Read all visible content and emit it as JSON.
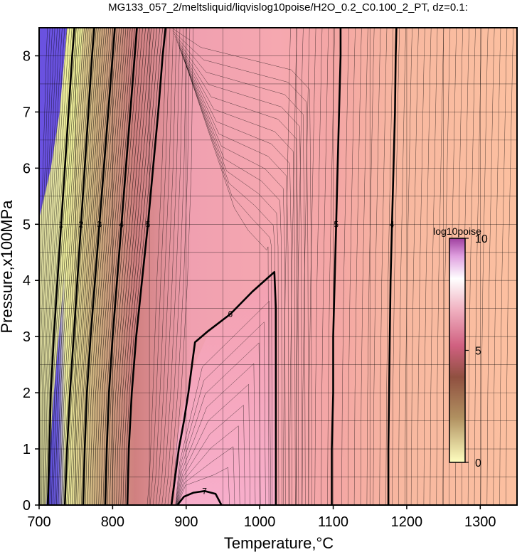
{
  "chart_data": {
    "type": "heatmap",
    "title": "MG133_057_2/meltsliquid/liqvislog10poise/H2O_0.2_C0.100_2_PT, dz=0.1:",
    "xlabel": "Temperature,°C",
    "ylabel": "Pressure,x100MPa",
    "xlim": [
      700,
      1350
    ],
    "ylim": [
      0,
      8.5
    ],
    "x_ticks": [
      700,
      800,
      900,
      1000,
      1100,
      1200,
      1300
    ],
    "y_ticks": [
      0,
      1,
      2,
      3,
      4,
      5,
      6,
      7,
      8
    ],
    "grid": true,
    "colorbar": {
      "label": "log10poise",
      "range": [
        0,
        10
      ],
      "ticks": [
        0,
        5,
        10
      ],
      "placement": "right-inside",
      "colors": [
        "#ffffc0",
        "#c08060",
        "#d04080",
        "#f0c0e0",
        "#ffffff",
        "#f0e0f0",
        "#a040a0"
      ]
    },
    "contour_interval": 0.1,
    "major_contours": [
      {
        "level": 1,
        "label": "1",
        "points": [
          [
            712,
            0
          ],
          [
            714,
            1
          ],
          [
            716,
            2
          ],
          [
            720,
            3
          ],
          [
            725,
            4
          ],
          [
            730,
            5
          ],
          [
            735,
            6
          ],
          [
            740,
            7
          ],
          [
            745,
            8
          ],
          [
            748,
            8.5
          ]
        ]
      },
      {
        "level": 2,
        "label": "2",
        "points": [
          [
            735,
            0
          ],
          [
            738,
            1
          ],
          [
            742,
            2
          ],
          [
            747,
            3
          ],
          [
            752,
            4
          ],
          [
            757,
            5
          ],
          [
            762,
            6
          ],
          [
            767,
            7
          ],
          [
            772,
            8
          ],
          [
            775,
            8.5
          ]
        ]
      },
      {
        "level": 3,
        "label": "3",
        "points": [
          [
            760,
            0
          ],
          [
            762,
            1
          ],
          [
            765,
            2
          ],
          [
            770,
            3
          ],
          [
            776,
            4
          ],
          [
            782,
            5
          ],
          [
            788,
            6
          ],
          [
            794,
            7
          ],
          [
            800,
            8
          ],
          [
            803,
            8.5
          ]
        ]
      },
      {
        "level": 4,
        "label": "4",
        "points": [
          [
            790,
            0
          ],
          [
            792,
            1
          ],
          [
            795,
            2
          ],
          [
            800,
            3
          ],
          [
            806,
            4
          ],
          [
            812,
            5
          ],
          [
            818,
            6
          ],
          [
            824,
            7
          ],
          [
            830,
            8
          ],
          [
            833,
            8.5
          ]
        ]
      },
      {
        "level": 5,
        "label": "5",
        "points": [
          [
            820,
            0
          ],
          [
            822,
            1
          ],
          [
            826,
            2
          ],
          [
            832,
            3
          ],
          [
            840,
            4
          ],
          [
            848,
            5
          ],
          [
            855,
            6
          ],
          [
            862,
            7
          ],
          [
            868,
            8
          ],
          [
            872,
            8.5
          ]
        ]
      },
      {
        "level": 6,
        "label": "6",
        "points": [
          [
            880,
            0
          ],
          [
            885,
            0.5
          ],
          [
            890,
            1
          ],
          [
            897,
            1.5
          ],
          [
            903,
            2
          ],
          [
            908,
            2.5
          ],
          [
            912,
            2.9
          ],
          [
            930,
            3.1
          ],
          [
            960,
            3.4
          ],
          [
            990,
            3.8
          ],
          [
            1020,
            4.15
          ],
          [
            1022,
            3.5
          ],
          [
            1022,
            2.5
          ],
          [
            1022,
            1.5
          ],
          [
            1022,
            0.5
          ],
          [
            1022,
            0
          ]
        ]
      },
      {
        "level": 7,
        "label": "7",
        "points": [
          [
            888,
            0
          ],
          [
            897,
            0.15
          ],
          [
            910,
            0.22
          ],
          [
            925,
            0.25
          ],
          [
            940,
            0.2
          ],
          [
            948,
            0
          ]
        ]
      },
      {
        "level": 5,
        "label": "5",
        "points": [
          [
            1098,
            0
          ],
          [
            1098,
            1
          ],
          [
            1100,
            2
          ],
          [
            1100,
            3
          ],
          [
            1102,
            4
          ],
          [
            1104,
            5
          ],
          [
            1106,
            6
          ],
          [
            1108,
            7
          ],
          [
            1110,
            8
          ],
          [
            1110,
            8.5
          ]
        ]
      },
      {
        "level": 4,
        "label": "4",
        "points": [
          [
            1175,
            0
          ],
          [
            1175,
            1
          ],
          [
            1176,
            2
          ],
          [
            1177,
            3
          ],
          [
            1178,
            4
          ],
          [
            1180,
            5
          ],
          [
            1182,
            6
          ],
          [
            1184,
            7
          ],
          [
            1185,
            8
          ],
          [
            1186,
            8.5
          ]
        ]
      }
    ]
  }
}
